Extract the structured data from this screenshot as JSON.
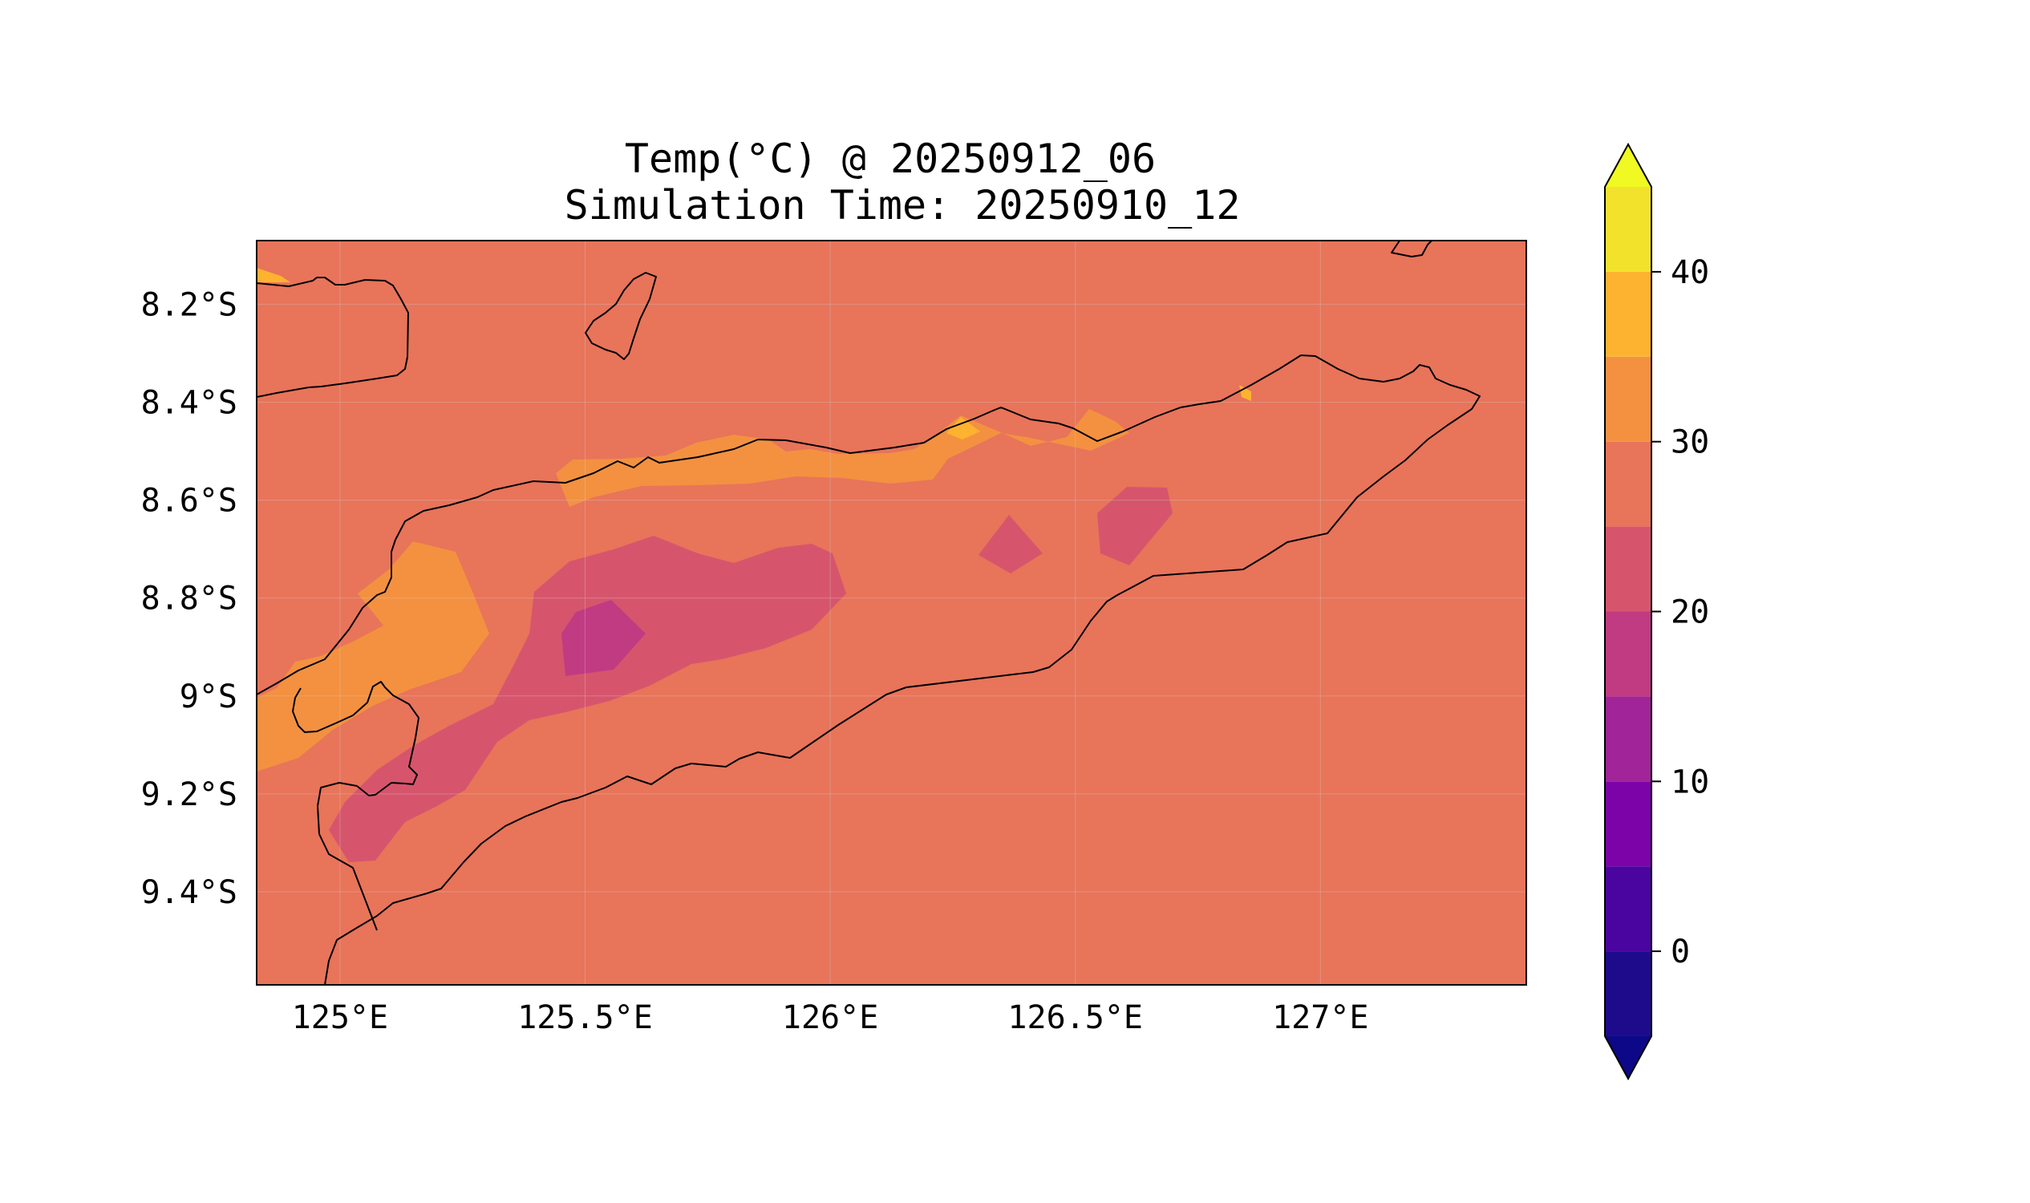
{
  "title": {
    "line1": "Temp(°C) @ 20250912_06",
    "line2": "Simulation Time: 20250910_12"
  },
  "map": {
    "lon_range": [
      124.83,
      127.42
    ],
    "lat_range": [
      -9.59,
      -8.07
    ],
    "grid": true,
    "x_ticks": [
      {
        "value": 125.0,
        "label": "125°E"
      },
      {
        "value": 125.5,
        "label": "125.5°E"
      },
      {
        "value": 126.0,
        "label": "126°E"
      },
      {
        "value": 126.5,
        "label": "126.5°E"
      },
      {
        "value": 127.0,
        "label": "127°E"
      }
    ],
    "y_ticks": [
      {
        "value": -8.2,
        "label": "8.2°S"
      },
      {
        "value": -8.4,
        "label": "8.4°S"
      },
      {
        "value": -8.6,
        "label": "8.6°S"
      },
      {
        "value": -8.8,
        "label": "8.8°S"
      },
      {
        "value": -9.0,
        "label": "9°S"
      },
      {
        "value": -9.2,
        "label": "9.2°S"
      },
      {
        "value": -9.4,
        "label": "9.4°S"
      }
    ],
    "colors": {
      "background_25_30": "#e8745a",
      "band_30_35": "#f39141",
      "band_35_40": "#fdb32f",
      "band_20_25": "#d6556d",
      "band_15_20": "#c13b82",
      "coastline": "#000000"
    }
  },
  "colorbar": {
    "levels": [
      -5,
      0,
      5,
      10,
      15,
      20,
      25,
      30,
      35,
      40,
      45
    ],
    "colors": [
      "#1e0b8b",
      "#4a04a0",
      "#7b03a8",
      "#a12598",
      "#c13b82",
      "#d6556d",
      "#e8745a",
      "#f39141",
      "#fdb32f",
      "#f3e22c"
    ],
    "extend_min_color": "#0d0887",
    "extend_max_color": "#f0f921",
    "ticks": [
      {
        "value": 0,
        "label": "0"
      },
      {
        "value": 10,
        "label": "10"
      },
      {
        "value": 20,
        "label": "20"
      },
      {
        "value": 30,
        "label": "30"
      },
      {
        "value": 40,
        "label": "40"
      }
    ]
  }
}
